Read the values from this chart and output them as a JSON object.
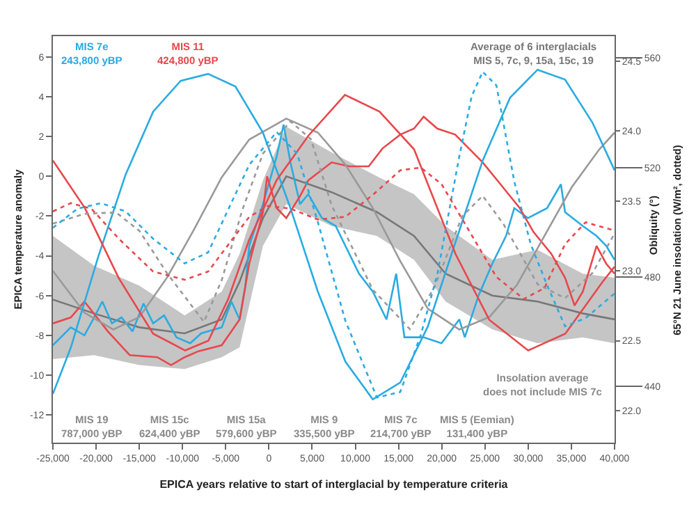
{
  "chart_data": {
    "type": "line",
    "xlabel": "EPICA years relative to start of interglacial by temperature criteria",
    "ylabel": "EPICA temperature anomaly",
    "y2label": "Obliquity (°)",
    "y3label": "65°N 21 June insolation (W/m², dotted)",
    "xlim": [
      -25000,
      40000
    ],
    "xticks": [
      {
        "value": -25000,
        "label": "-25,000"
      },
      {
        "value": -20000,
        "label": "-20,000"
      },
      {
        "value": -15000,
        "label": "-15,000"
      },
      {
        "value": -10000,
        "label": "-10,000"
      },
      {
        "value": -5000,
        "label": "-5,000"
      },
      0,
      {
        "value": 5000,
        "label": "5,000"
      },
      {
        "value": 10000,
        "label": "10,000"
      },
      {
        "value": 15000,
        "label": "15,000"
      },
      {
        "value": 20000,
        "label": "20,000"
      },
      {
        "value": 25000,
        "label": "25,000"
      },
      {
        "value": 30000,
        "label": "30,000"
      },
      {
        "value": 35000,
        "label": "35,000"
      },
      {
        "value": 40000,
        "label": "40,000"
      }
    ],
    "ylim": [
      -13.4,
      7.05
    ],
    "yticks": [
      -12,
      -10,
      -8,
      -6,
      -4,
      -2,
      0,
      2,
      4,
      6
    ],
    "y2lim": [
      21.77,
      24.68
    ],
    "y2ticks": [
      {
        "value": 22,
        "label": "22.0"
      },
      22.5,
      {
        "value": 23,
        "label": "23.0"
      },
      23.5,
      {
        "value": 24,
        "label": "24.0"
      },
      24.5
    ],
    "y3lim": [
      419.5,
      568
    ],
    "y3ticks": [
      440,
      480,
      520,
      560
    ],
    "legend": false,
    "series": [
      {
        "name": "Average of 6 interglacials\nMIS 5, 7c, 9, 15a, 15c, 19",
        "type": "line",
        "axis": "y",
        "color": "#777777",
        "line_style": "solid",
        "x": [
          -25000,
          -20230,
          -14990,
          -9750,
          -5460,
          -3390,
          -690,
          2010,
          7260,
          12500,
          16790,
          20450,
          25850,
          31090,
          36330,
          40000
        ],
        "values": [
          -6.2,
          -6.9,
          -7.6,
          -7.9,
          -7.2,
          -5.3,
          -2.1,
          0.0,
          -0.8,
          -1.8,
          -3.0,
          -4.9,
          -6.0,
          -6.3,
          -6.9,
          -7.2
        ],
        "lower": [
          -9.2,
          -9.0,
          -9.5,
          -9.7,
          -9.1,
          -8.6,
          -3.5,
          -1.4,
          -2.5,
          -3.0,
          -4.2,
          -6.3,
          -7.7,
          -8.4,
          -8.1,
          -8.4
        ],
        "upper": [
          -3.0,
          -4.5,
          -5.5,
          -7.0,
          -5.8,
          -3.9,
          -0.2,
          2.5,
          1.2,
          0.0,
          -0.9,
          -2.5,
          -4.2,
          -3.7,
          -4.9,
          -5.1
        ]
      },
      {
        "type": "line",
        "axis": "y2",
        "color": "#999999",
        "line_style": "solid",
        "x": [
          -25000,
          -21350,
          -18010,
          -14990,
          -11810,
          -8630,
          -5460,
          -2280,
          2010,
          5670,
          8850,
          12020,
          15200,
          18380,
          22030,
          25530,
          28710,
          31890,
          35060,
          38240,
          40000
        ],
        "values": [
          23.0,
          22.7,
          22.58,
          22.67,
          22.95,
          23.3,
          23.67,
          23.94,
          24.09,
          23.99,
          23.76,
          23.45,
          23.07,
          22.73,
          22.58,
          22.67,
          22.9,
          23.25,
          23.6,
          23.87,
          23.99
        ]
      },
      {
        "type": "line",
        "axis": "y2",
        "color": "#29abe2",
        "line_style": "solid",
        "x": [
          -25000,
          -22930,
          -19760,
          -16580,
          -13400,
          -10220,
          -7040,
          -3870,
          -690,
          2490,
          5670,
          8850,
          12020,
          15200,
          18380,
          21560,
          24740,
          27910,
          31090,
          34270,
          37450,
          40000
        ],
        "values": [
          22.12,
          22.45,
          23.1,
          23.69,
          24.14,
          24.36,
          24.41,
          24.32,
          23.99,
          23.45,
          22.85,
          22.35,
          22.08,
          22.2,
          22.6,
          23.2,
          23.79,
          24.24,
          24.44,
          24.37,
          24.06,
          23.72
        ]
      },
      {
        "type": "line",
        "axis": "y2",
        "color": "#e8474c",
        "line_style": "solid",
        "x": [
          -25000,
          -21300,
          -17400,
          -13400,
          -9700,
          -7000,
          -4700,
          -2300,
          900,
          4600,
          8800,
          12800,
          16800,
          21600,
          25500,
          30000,
          34300,
          38600,
          40000
        ],
        "values": [
          23.79,
          23.45,
          22.95,
          22.55,
          22.43,
          22.5,
          22.8,
          23.22,
          23.65,
          23.97,
          24.26,
          24.14,
          23.87,
          23.12,
          22.65,
          22.43,
          22.55,
          22.92,
          23.03
        ]
      },
      {
        "type": "line",
        "axis": "y3",
        "color": "#999999",
        "line_style": "dotted",
        "x": [
          -25000,
          -21350,
          -17690,
          -14990,
          -11810,
          -7520,
          -5450,
          -3070,
          -690,
          2490,
          4870,
          7260,
          12020,
          16310,
          19170,
          22350,
          24740,
          27120,
          31090,
          34270,
          37450,
          40000
        ],
        "values": [
          499.5,
          503.1,
          503.6,
          496.9,
          481.5,
          463.6,
          479,
          504.6,
          525.1,
          536.9,
          530.3,
          506.2,
          475.4,
          461,
          476.4,
          502.1,
          509.7,
          499.5,
          477.4,
          472.3,
          481.5,
          495.9
        ]
      },
      {
        "type": "line",
        "axis": "y3",
        "color": "#29abe2",
        "line_style": "dotted",
        "x": [
          -25000,
          -22140,
          -19440,
          -16580,
          -13400,
          -9750,
          -7040,
          -4660,
          -2280,
          900,
          3280,
          5670,
          8850,
          12500,
          15200,
          17590,
          19490,
          22030,
          23460,
          24740,
          26330,
          28390,
          30300,
          32200,
          34270,
          36650,
          40000
        ],
        "values": [
          498,
          505,
          507,
          504,
          494,
          485,
          489,
          505,
          521,
          533,
          525,
          500,
          464,
          436,
          438,
          459,
          481,
          524,
          546,
          555,
          550,
          515,
          492,
          477,
          462,
          465,
          474
        ]
      },
      {
        "type": "line",
        "axis": "y3",
        "color": "#e8474c",
        "line_style": "dotted",
        "x": [
          -25000,
          -22930,
          -20550,
          -17370,
          -13400,
          -9750,
          -7040,
          -4660,
          -2280,
          -110,
          2490,
          5670,
          8850,
          12020,
          15200,
          17590,
          19970,
          23150,
          26330,
          29500,
          31890,
          34270,
          36650,
          40000
        ],
        "values": [
          504,
          507,
          505,
          494,
          482,
          479,
          482,
          492,
          502,
          506,
          505,
          501,
          502,
          510,
          519,
          520,
          514,
          497,
          480,
          472,
          476,
          492,
          500,
          497
        ]
      },
      {
        "name": "MIS 7e\n243,800 yBP",
        "type": "line",
        "axis": "y",
        "color": "#29abe2",
        "line_style": "solid",
        "x": [
          -25000,
          -22930,
          -21350,
          -20230,
          -19280,
          -18170,
          -17060,
          -15780,
          -14510,
          -13400,
          -12130,
          -10700,
          -9110,
          -7840,
          -7040,
          -5460,
          -4340,
          -3390,
          -2750,
          -2280,
          -690,
          900,
          1700,
          2490,
          3600,
          4560,
          6140,
          7730,
          8850,
          10430,
          12020,
          13610,
          14730,
          15680,
          17910,
          19970,
          22030,
          22670,
          24260,
          25850,
          27440,
          28390,
          29980,
          32200,
          33790,
          34270,
          36330,
          37920,
          39040,
          40000
        ],
        "values": [
          -8.5,
          -7.6,
          -8.0,
          -7.1,
          -6.3,
          -7.4,
          -7.1,
          -7.8,
          -6.4,
          -7.4,
          -7.0,
          -8.1,
          -8.4,
          -7.9,
          -7.8,
          -7.6,
          -6.3,
          -7.2,
          -5.6,
          -3.5,
          -1.4,
          1.0,
          2.6,
          0.7,
          -1.4,
          -0.9,
          -2.1,
          -2.5,
          -3.5,
          -4.9,
          -5.8,
          -7.2,
          -4.9,
          -8.1,
          -8.1,
          -8.4,
          -7.2,
          -8.1,
          -6.0,
          -4.4,
          -3.0,
          -1.6,
          -2.1,
          -1.6,
          -0.4,
          -1.8,
          -2.5,
          -3.0,
          -3.5,
          -4.2
        ]
      },
      {
        "name": "MIS 11\n424,800 yBP",
        "type": "line",
        "axis": "y",
        "color": "#e8474c",
        "line_style": "solid",
        "x": [
          -25000,
          -22930,
          -21350,
          -18640,
          -16100,
          -12920,
          -11330,
          -9750,
          -8160,
          -5460,
          -3390,
          -2280,
          -690,
          -210,
          900,
          2010,
          3600,
          4560,
          7260,
          9320,
          11550,
          13140,
          15200,
          16790,
          17910,
          19490,
          21560,
          23150,
          24740,
          26800,
          29030,
          30620,
          32680,
          34270,
          35380,
          36330,
          37920,
          39040,
          40000
        ],
        "values": [
          -7.4,
          -7.1,
          -6.3,
          -7.8,
          -9.0,
          -9.1,
          -9.5,
          -9.1,
          -8.8,
          -8.5,
          -7.2,
          -4.4,
          -1.8,
          0.0,
          -1.6,
          -2.1,
          -1.0,
          -0.2,
          0.7,
          0.5,
          0.5,
          1.4,
          2.1,
          2.4,
          3.0,
          2.4,
          2.1,
          1.4,
          0.7,
          -0.4,
          -1.6,
          -2.8,
          -3.9,
          -5.1,
          -6.5,
          -5.8,
          -3.5,
          -4.4,
          -4.9
        ]
      }
    ],
    "annotations": [
      "MIS 19\n787,000 yBP",
      "MIS 15c\n624,400 yBP",
      "MIS 15a\n579,600 yBP",
      "MIS 9\n335,500 yBP",
      "MIS 7c\n214,700 yBP",
      "MIS 5 (Eemian)\n131,400 yBP",
      "Insolation average\ndoes not include MIS 7c"
    ]
  }
}
